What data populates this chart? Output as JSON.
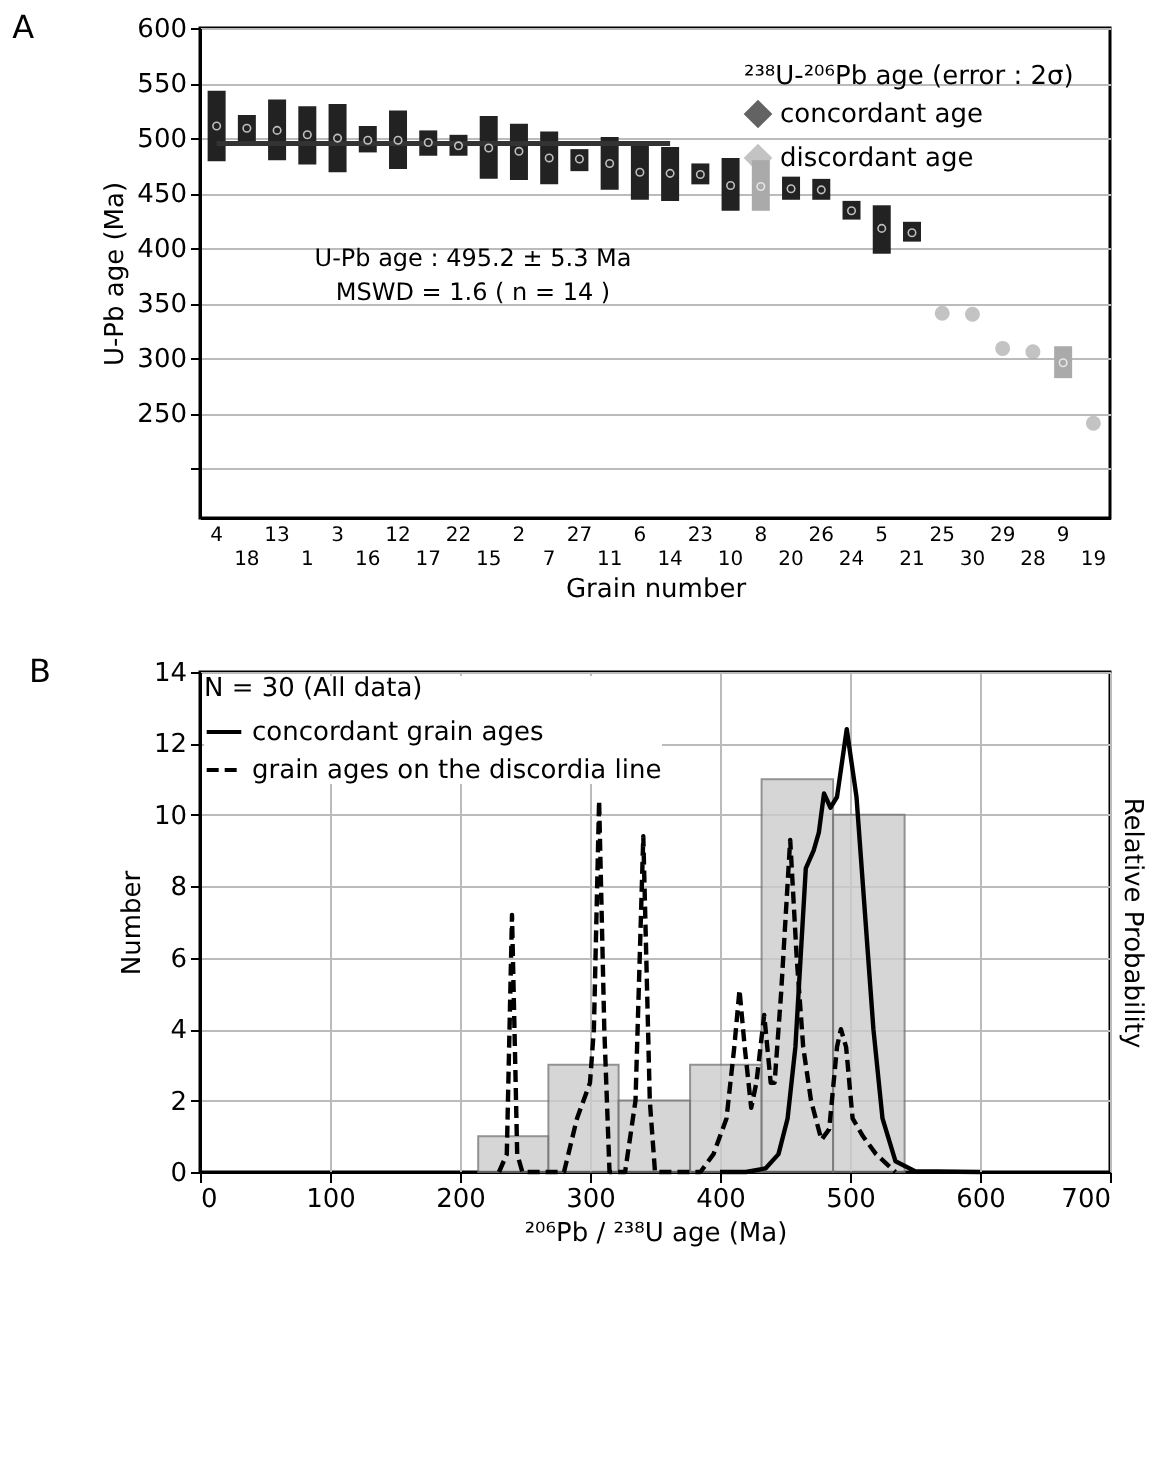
{
  "chart_data": [
    {
      "type": "scatter",
      "title": "A",
      "ylabel": "U-Pb age (Ma)",
      "xlabel": "Grain number",
      "legend_title": "²³⁸U-²⁰⁶Pb age (error : 2σ)",
      "categories": [
        "4",
        "18",
        "13",
        "1",
        "3",
        "16",
        "12",
        "17",
        "22",
        "15",
        "2",
        "7",
        "27",
        "11",
        "6",
        "14",
        "23",
        "10",
        "8",
        "20",
        "26",
        "24",
        "5",
        "21",
        "25",
        "30",
        "29",
        "28",
        "9",
        "19"
      ],
      "series": [
        {
          "name": "concordant age",
          "color": "#222222",
          "values": [
            511,
            509,
            507,
            503,
            500,
            498,
            498,
            496,
            493,
            491,
            488,
            482,
            481,
            477,
            469,
            468,
            467,
            457,
            null,
            454,
            453,
            434,
            418,
            414,
            null,
            null,
            null,
            null,
            null,
            null
          ],
          "errors": [
            [
              479,
              543
            ],
            [
              494,
              521
            ],
            [
              480,
              535
            ],
            [
              476,
              529
            ],
            [
              469,
              531
            ],
            [
              487,
              511
            ],
            [
              472,
              525
            ],
            [
              484,
              507
            ],
            [
              484,
              503
            ],
            [
              463,
              520
            ],
            [
              462,
              513
            ],
            [
              458,
              506
            ],
            [
              470,
              490
            ],
            [
              453,
              501
            ],
            [
              444,
              495
            ],
            [
              443,
              492
            ],
            [
              458,
              477
            ],
            [
              434,
              482
            ],
            null,
            [
              444,
              465
            ],
            [
              444,
              463
            ],
            [
              426,
              443
            ],
            [
              395,
              439
            ],
            [
              406,
              424
            ],
            null,
            null,
            null,
            null,
            null,
            null
          ]
        },
        {
          "name": "discordant age",
          "color": "#aaaaaa",
          "values": [
            null,
            null,
            null,
            null,
            null,
            null,
            null,
            null,
            null,
            null,
            null,
            null,
            null,
            null,
            null,
            null,
            null,
            null,
            456,
            null,
            null,
            null,
            null,
            null,
            341,
            340,
            309,
            306,
            296,
            241
          ],
          "errors": [
            null,
            null,
            null,
            null,
            null,
            null,
            null,
            null,
            null,
            null,
            null,
            null,
            null,
            null,
            null,
            null,
            null,
            null,
            [
              434,
              480
            ],
            null,
            null,
            null,
            null,
            null,
            null,
            null,
            null,
            null,
            [
              282,
              311
            ],
            null
          ]
        },
        {
          "type": "line",
          "color": "#333333",
          "marker": "none",
          "x": [
            "4",
            "14"
          ],
          "values": [
            495.2,
            495.2
          ]
        }
      ],
      "ylim": [
        155,
        600
      ],
      "yticks": [
        {
          "value": 200,
          "label": null
        },
        250,
        300,
        350,
        400,
        450,
        500,
        550,
        600
      ],
      "grid": "y",
      "legend": "top right",
      "marker": "circle",
      "annotations": [
        "U-Pb age : 495.2 ± 5.3 Ma",
        "MSWD = 1.6 ( n = 14 )"
      ]
    },
    {
      "type": "histogram",
      "title": "B",
      "xlabel": "²⁰⁶Pb / ²³⁸U  age (Ma)",
      "ylabel": "Number",
      "y2label": "Relative Probability",
      "legend_title": "N = 30 (All data)",
      "bins": [
        214,
        268,
        322,
        377,
        432,
        487,
        542
      ],
      "values": [
        1,
        3,
        2,
        3,
        11,
        10
      ],
      "color": "#cccccc",
      "series": [
        {
          "type": "line",
          "name": "concordant grain ages",
          "color": "#000000",
          "line_style": "solid",
          "x": [
            400,
            420,
            435,
            445,
            452,
            458,
            462,
            466,
            472,
            476,
            480,
            485,
            490,
            497.5,
            505,
            512,
            518,
            525,
            535,
            550,
            600
          ],
          "values": [
            0,
            0,
            0.1,
            0.5,
            1.5,
            3.5,
            6,
            8.5,
            9,
            9.5,
            10.6,
            10.2,
            10.5,
            12.4,
            10.5,
            7,
            4,
            1.5,
            0.3,
            0.02,
            0
          ]
        },
        {
          "type": "line",
          "name": "grain ages on the discordia line",
          "color": "#000000",
          "line_style": "dashed",
          "x": [
            230,
            236,
            240,
            244,
            248,
            280,
            290,
            300,
            303,
            307,
            311,
            315,
            327,
            335,
            341,
            346,
            350,
            385,
            395,
            405,
            411,
            415,
            419,
            424,
            428,
            434,
            439,
            442,
            447,
            454,
            459,
            464,
            470,
            478,
            484,
            490,
            493,
            497,
            502,
            510,
            520,
            535
          ],
          "values": [
            0,
            0.5,
            7.2,
            0.5,
            0,
            0,
            1.5,
            2.5,
            4,
            10.4,
            4,
            0,
            0,
            2,
            9.4,
            2,
            0,
            0,
            0.5,
            1.5,
            3.5,
            5.1,
            3.5,
            1.8,
            2.5,
            4.4,
            2.5,
            2.5,
            5,
            9.3,
            6,
            3.5,
            2,
            0.9,
            1.2,
            3.5,
            4,
            3.5,
            1.5,
            1,
            0.5,
            0
          ]
        }
      ],
      "xlim": [
        0,
        700
      ],
      "xticks": [
        0,
        100,
        200,
        300,
        400,
        500,
        600,
        700
      ],
      "ylim": [
        0,
        14
      ],
      "yticks": [
        0,
        2,
        4,
        6,
        8,
        10,
        12,
        14
      ],
      "grid": true,
      "legend": "top left"
    }
  ]
}
